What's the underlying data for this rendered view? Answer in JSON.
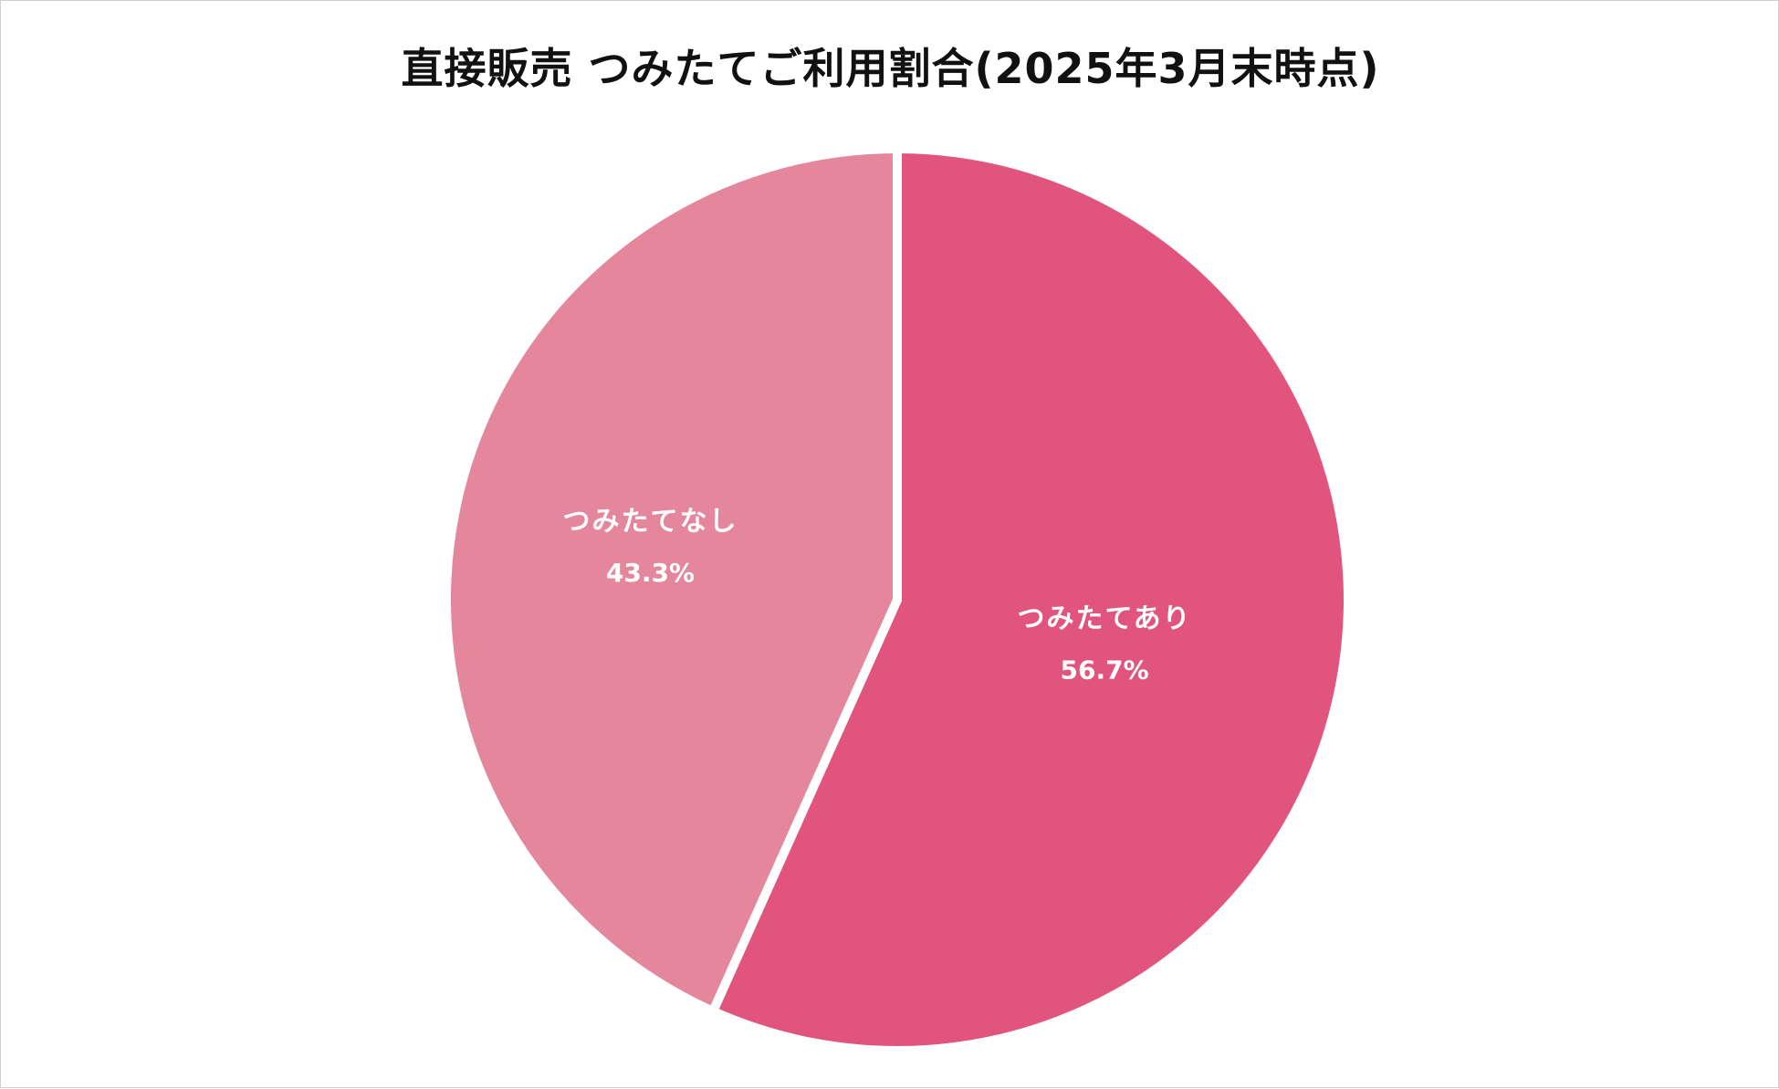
{
  "chart_data": {
    "type": "pie",
    "title": "直接販売 つみたてご利用割合(2025年3月末時点)",
    "slices": [
      {
        "label": "つみたてあり",
        "value": 56.7,
        "value_label": "56.7%",
        "color": "#e0547e"
      },
      {
        "label": "つみたてなし",
        "value": 43.3,
        "value_label": "43.3%",
        "color": "#e4869c"
      }
    ],
    "start": "12 o'clock",
    "direction": "clockwise",
    "separator_color": "#ffffff"
  }
}
